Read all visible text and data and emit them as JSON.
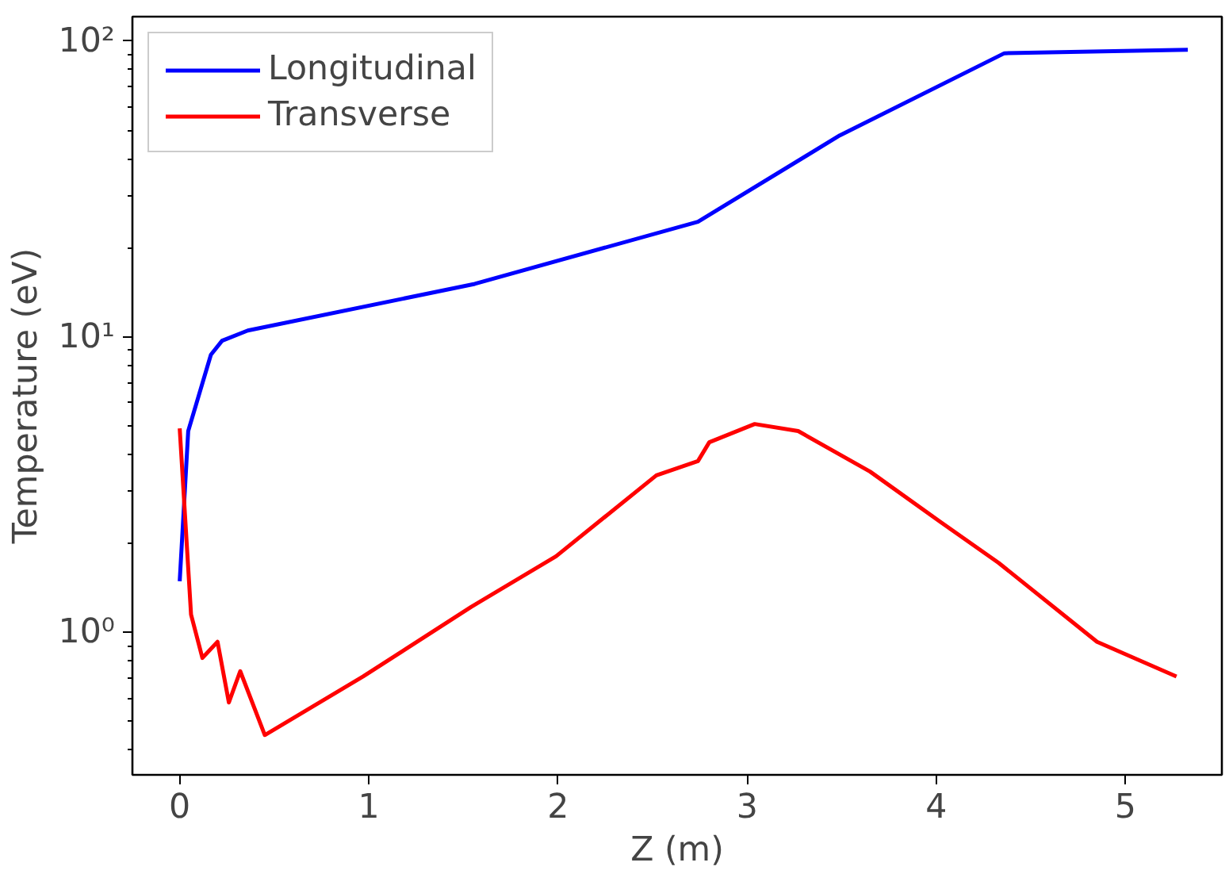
{
  "chart_data": {
    "type": "line",
    "xlabel": "Z (m)",
    "ylabel": "Temperature (eV)",
    "log": "y",
    "legend": "top left",
    "grid": false,
    "xlim": [
      -0.25,
      5.51
    ],
    "ylim": [
      0.33,
      121
    ],
    "xticks": [
      0,
      1,
      2,
      3,
      4,
      5
    ],
    "yticks": [
      {
        "value": 1,
        "label": "10⁰"
      },
      {
        "value": 10,
        "label": "10¹"
      },
      {
        "value": 100,
        "label": "10²"
      }
    ],
    "series": [
      {
        "name": "Longitudinal",
        "color": "#0000ff",
        "x": [
          0,
          0.045,
          0.165,
          0.224,
          0.36,
          1.56,
          2.74,
          3.49,
          4.36,
          5.33
        ],
        "values": [
          1.49,
          4.8,
          8.7,
          9.7,
          10.5,
          15.1,
          24.5,
          48,
          91,
          93.5
        ]
      },
      {
        "name": "Transverse",
        "color": "#ff0000",
        "x": [
          0,
          0.06,
          0.12,
          0.2,
          0.26,
          0.32,
          0.45,
          0.97,
          1.54,
          1.99,
          2.52,
          2.74,
          2.8,
          3.04,
          3.27,
          3.65,
          4.02,
          4.33,
          4.85,
          5.27
        ],
        "values": [
          4.9,
          1.15,
          0.82,
          0.93,
          0.58,
          0.74,
          0.45,
          0.71,
          1.22,
          1.81,
          3.4,
          3.8,
          4.4,
          5.07,
          4.8,
          3.5,
          2.37,
          1.72,
          0.93,
          0.71
        ]
      }
    ]
  }
}
